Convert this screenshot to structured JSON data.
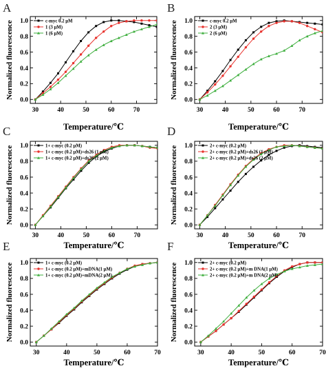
{
  "chart_data": [
    {
      "panel": "A",
      "type": "line",
      "xlabel": "Temperature/℃",
      "ylabel": "Normalized fluorescence",
      "xlim": [
        28,
        78
      ],
      "ylim": [
        -0.05,
        1.05
      ],
      "xticks": [
        30,
        40,
        50,
        60,
        70
      ],
      "yticks": [
        0.0,
        0.2,
        0.4,
        0.6,
        0.8,
        1.0
      ],
      "xtick_labels": [
        "30",
        "40",
        "50",
        "60",
        "70"
      ],
      "ytick_labels": [
        "0.0",
        "0.2",
        "0.4",
        "0.6",
        "0.8",
        "1.0"
      ],
      "legend_position": "top-left",
      "series": [
        {
          "name": "c-myc 0.2 μM",
          "color": "#000000",
          "x": [
            30,
            33,
            36,
            39,
            42,
            45,
            48,
            51,
            54,
            57,
            60,
            63,
            66,
            69,
            72,
            75,
            78
          ],
          "y": [
            0.0,
            0.1,
            0.21,
            0.33,
            0.47,
            0.61,
            0.74,
            0.85,
            0.93,
            0.98,
            1.0,
            1.0,
            0.99,
            0.98,
            0.96,
            0.94,
            0.92
          ]
        },
        {
          "name": "1 (3 μM)",
          "color": "#e8322d",
          "x": [
            30,
            33,
            36,
            39,
            42,
            45,
            48,
            51,
            54,
            57,
            60,
            63,
            66,
            69,
            72,
            75,
            78
          ],
          "y": [
            0.0,
            0.08,
            0.16,
            0.25,
            0.35,
            0.46,
            0.57,
            0.68,
            0.78,
            0.86,
            0.93,
            0.97,
            0.99,
            1.0,
            1.0,
            1.0,
            1.0
          ]
        },
        {
          "name": "1 (6 μM)",
          "color": "#3cae3c",
          "x": [
            30,
            33,
            36,
            39,
            42,
            45,
            48,
            51,
            54,
            57,
            60,
            63,
            66,
            69,
            72,
            75,
            78
          ],
          "y": [
            0.0,
            0.06,
            0.13,
            0.21,
            0.3,
            0.39,
            0.48,
            0.56,
            0.63,
            0.69,
            0.74,
            0.78,
            0.82,
            0.86,
            0.89,
            0.92,
            0.95
          ]
        }
      ]
    },
    {
      "panel": "B",
      "type": "line",
      "xlabel": "Temperature/℃",
      "ylabel": "Normalized fluorescence",
      "xlim": [
        28,
        78
      ],
      "ylim": [
        -0.05,
        1.05
      ],
      "xticks": [
        30,
        40,
        50,
        60,
        70
      ],
      "yticks": [
        0.0,
        0.2,
        0.4,
        0.6,
        0.8,
        1.0
      ],
      "xtick_labels": [
        "30",
        "40",
        "50",
        "60",
        "70"
      ],
      "ytick_labels": [
        "0.0",
        "0.2",
        "0.4",
        "0.6",
        "0.8",
        "1.0"
      ],
      "legend_position": "top-left",
      "series": [
        {
          "name": "c-myc 0.2 μM",
          "color": "#000000",
          "x": [
            30,
            33,
            36,
            39,
            42,
            45,
            48,
            51,
            54,
            57,
            60,
            63,
            66,
            69,
            72,
            75,
            78
          ],
          "y": [
            0.0,
            0.11,
            0.23,
            0.36,
            0.5,
            0.63,
            0.75,
            0.85,
            0.92,
            0.97,
            0.99,
            1.0,
            0.99,
            0.98,
            0.97,
            0.96,
            0.95
          ]
        },
        {
          "name": "2 (3 μM)",
          "color": "#e8322d",
          "x": [
            30,
            33,
            36,
            39,
            42,
            45,
            48,
            51,
            54,
            57,
            60,
            63,
            66,
            69,
            72,
            75,
            78
          ],
          "y": [
            0.0,
            0.09,
            0.19,
            0.3,
            0.42,
            0.54,
            0.66,
            0.77,
            0.86,
            0.93,
            0.97,
            0.99,
            0.99,
            0.97,
            0.93,
            0.89,
            0.85
          ]
        },
        {
          "name": "2 (6 μM)",
          "color": "#3cae3c",
          "x": [
            30,
            33,
            36,
            39,
            42,
            45,
            48,
            51,
            54,
            57,
            60,
            63,
            66,
            69,
            72,
            75,
            78
          ],
          "y": [
            0.0,
            0.05,
            0.11,
            0.17,
            0.24,
            0.31,
            0.38,
            0.45,
            0.51,
            0.55,
            0.58,
            0.62,
            0.68,
            0.75,
            0.8,
            0.84,
            0.87
          ]
        }
      ]
    },
    {
      "panel": "C",
      "type": "line",
      "xlabel": "Temperature/℃",
      "ylabel": "Normalized fluorescence",
      "xlim": [
        28,
        78
      ],
      "ylim": [
        -0.05,
        1.05
      ],
      "xticks": [
        30,
        40,
        50,
        60,
        70
      ],
      "yticks": [
        0.0,
        0.2,
        0.4,
        0.6,
        0.8,
        1.0
      ],
      "xtick_labels": [
        "30",
        "40",
        "50",
        "60",
        "70"
      ],
      "ytick_labels": [
        "0.0",
        "0.2",
        "0.4",
        "0.6",
        "0.8",
        "1.0"
      ],
      "legend_position": "top-left",
      "series": [
        {
          "name": "1+ c-myc (0.2 μM)",
          "color": "#000000",
          "x": [
            30,
            33,
            36,
            39,
            42,
            45,
            48,
            51,
            54,
            57,
            60,
            63,
            66,
            69,
            72,
            75,
            78
          ],
          "y": [
            0.0,
            0.11,
            0.22,
            0.34,
            0.46,
            0.57,
            0.68,
            0.78,
            0.86,
            0.92,
            0.96,
            0.99,
            1.0,
            1.0,
            0.99,
            0.98,
            0.97
          ]
        },
        {
          "name": "1+ c-myc (0.2 μM)+ds26 (1 μM)",
          "color": "#e8322d",
          "x": [
            30,
            33,
            36,
            39,
            42,
            45,
            48,
            51,
            54,
            57,
            60,
            63,
            66,
            69,
            72,
            75,
            78
          ],
          "y": [
            0.0,
            0.12,
            0.24,
            0.36,
            0.48,
            0.6,
            0.71,
            0.81,
            0.88,
            0.94,
            0.98,
            1.0,
            1.0,
            1.0,
            0.99,
            0.97,
            0.96
          ]
        },
        {
          "name": "1+ c-myc (0.2 μM)+ds26 (2 μM)",
          "color": "#3cae3c",
          "x": [
            30,
            33,
            36,
            39,
            42,
            45,
            48,
            51,
            54,
            57,
            60,
            63,
            66,
            69,
            72,
            75,
            78
          ],
          "y": [
            0.0,
            0.11,
            0.23,
            0.35,
            0.47,
            0.59,
            0.7,
            0.8,
            0.87,
            0.93,
            0.97,
            0.99,
            1.0,
            1.0,
            0.99,
            0.98,
            0.97
          ]
        }
      ]
    },
    {
      "panel": "D",
      "type": "line",
      "xlabel": "Temperature/℃",
      "ylabel": "Normalized fluorescence",
      "xlim": [
        28,
        78
      ],
      "ylim": [
        -0.05,
        1.05
      ],
      "xticks": [
        30,
        40,
        50,
        60,
        70
      ],
      "yticks": [
        0.0,
        0.2,
        0.4,
        0.6,
        0.8,
        1.0
      ],
      "xtick_labels": [
        "30",
        "40",
        "50",
        "60",
        "70"
      ],
      "ytick_labels": [
        "0.0",
        "0.2",
        "0.4",
        "0.6",
        "0.8",
        "1.0"
      ],
      "legend_position": "top-left",
      "series": [
        {
          "name": "2+ c-myc (0.2 μM)",
          "color": "#000000",
          "x": [
            30,
            33,
            36,
            39,
            42,
            45,
            48,
            51,
            54,
            57,
            60,
            63,
            66,
            69,
            72,
            75,
            78
          ],
          "y": [
            0.0,
            0.1,
            0.21,
            0.32,
            0.43,
            0.54,
            0.64,
            0.73,
            0.81,
            0.88,
            0.93,
            0.97,
            0.99,
            1.0,
            0.99,
            0.98,
            0.97
          ]
        },
        {
          "name": "2+ c-myc (0.2 μM)+ds26 (1 μM)",
          "color": "#e8322d",
          "x": [
            30,
            33,
            36,
            39,
            42,
            45,
            48,
            51,
            54,
            57,
            60,
            63,
            66,
            69,
            72,
            75,
            78
          ],
          "y": [
            0.0,
            0.12,
            0.25,
            0.38,
            0.51,
            0.63,
            0.74,
            0.83,
            0.9,
            0.95,
            0.98,
            1.0,
            1.0,
            0.99,
            0.98,
            0.97,
            0.96
          ]
        },
        {
          "name": "2+ c-myc (0.2 μM)+ds26 (2 μM)",
          "color": "#3cae3c",
          "x": [
            30,
            33,
            36,
            39,
            42,
            45,
            48,
            51,
            54,
            57,
            60,
            63,
            66,
            69,
            72,
            75,
            78
          ],
          "y": [
            0.0,
            0.12,
            0.24,
            0.37,
            0.5,
            0.62,
            0.73,
            0.82,
            0.89,
            0.94,
            0.98,
            0.99,
            1.0,
            0.99,
            0.98,
            0.97,
            0.96
          ]
        }
      ]
    },
    {
      "panel": "E",
      "type": "line",
      "xlabel": "Temperature/℃",
      "ylabel": "Normalized fluorescence",
      "xlim": [
        28,
        70
      ],
      "ylim": [
        -0.05,
        1.05
      ],
      "xticks": [
        30,
        40,
        50,
        60,
        70
      ],
      "yticks": [
        0.0,
        0.2,
        0.4,
        0.6,
        0.8,
        1.0
      ],
      "xtick_labels": [
        "30",
        "40",
        "50",
        "60",
        "70"
      ],
      "ytick_labels": [
        "0.0",
        "0.2",
        "0.4",
        "0.6",
        "0.8",
        "1.0"
      ],
      "legend_position": "top-left",
      "series": [
        {
          "name": "1+ c-myc (0.2 μM)",
          "color": "#000000",
          "x": [
            30,
            32.5,
            35,
            37.5,
            40,
            42.5,
            45,
            47.5,
            50,
            52.5,
            55,
            57.5,
            60,
            62.5,
            65,
            67.5,
            70
          ],
          "y": [
            0.0,
            0.08,
            0.16,
            0.24,
            0.33,
            0.41,
            0.5,
            0.58,
            0.66,
            0.73,
            0.8,
            0.86,
            0.91,
            0.95,
            0.98,
            0.99,
            1.0
          ]
        },
        {
          "name": "1+ c-myc (0.2 μM)+mDNA(1 μM)",
          "color": "#e8322d",
          "x": [
            30,
            32.5,
            35,
            37.5,
            40,
            42.5,
            45,
            47.5,
            50,
            52.5,
            55,
            57.5,
            60,
            62.5,
            65,
            67.5,
            70
          ],
          "y": [
            0.0,
            0.08,
            0.16,
            0.25,
            0.34,
            0.42,
            0.51,
            0.59,
            0.67,
            0.74,
            0.81,
            0.87,
            0.92,
            0.96,
            0.98,
            0.99,
            1.0
          ]
        },
        {
          "name": "1+ c-myc (0.2 μM)+mDNA(2 μM)",
          "color": "#3cae3c",
          "x": [
            30,
            32.5,
            35,
            37.5,
            40,
            42.5,
            45,
            47.5,
            50,
            52.5,
            55,
            57.5,
            60,
            62.5,
            65,
            67.5,
            70
          ],
          "y": [
            0.0,
            0.08,
            0.17,
            0.26,
            0.35,
            0.43,
            0.52,
            0.6,
            0.68,
            0.75,
            0.82,
            0.87,
            0.92,
            0.95,
            0.97,
            0.99,
            1.0
          ]
        }
      ]
    },
    {
      "panel": "F",
      "type": "line",
      "xlabel": "Temperature/℃",
      "ylabel": "Normalized fluorescence",
      "xlim": [
        28,
        70
      ],
      "ylim": [
        -0.05,
        1.05
      ],
      "xticks": [
        30,
        40,
        50,
        60,
        70
      ],
      "yticks": [
        0.0,
        0.2,
        0.4,
        0.6,
        0.8,
        1.0
      ],
      "xtick_labels": [
        "30",
        "40",
        "50",
        "60",
        "70"
      ],
      "ytick_labels": [
        "0.0",
        "0.2",
        "0.4",
        "0.6",
        "0.8",
        "1.0"
      ],
      "legend_position": "top-left",
      "series": [
        {
          "name": "2+ c-myc (0.2 μM)",
          "color": "#000000",
          "x": [
            30,
            32.5,
            35,
            37.5,
            40,
            42.5,
            45,
            47.5,
            50,
            52.5,
            55,
            57.5,
            60,
            62.5,
            65,
            67.5,
            70
          ],
          "y": [
            0.0,
            0.07,
            0.14,
            0.22,
            0.3,
            0.38,
            0.47,
            0.56,
            0.65,
            0.74,
            0.82,
            0.89,
            0.94,
            0.98,
            1.0,
            1.0,
            1.0
          ]
        },
        {
          "name": "2+ c-myc (0.2 μM)+m DNA(1 μM)",
          "color": "#e8322d",
          "x": [
            30,
            32.5,
            35,
            37.5,
            40,
            42.5,
            45,
            47.5,
            50,
            52.5,
            55,
            57.5,
            60,
            62.5,
            65,
            67.5,
            70
          ],
          "y": [
            0.0,
            0.07,
            0.14,
            0.22,
            0.3,
            0.39,
            0.48,
            0.57,
            0.66,
            0.75,
            0.83,
            0.9,
            0.95,
            0.98,
            1.0,
            1.0,
            1.0
          ]
        },
        {
          "name": "2+ c-myc (0.2 μM)+m DNA(2 μM)",
          "color": "#3cae3c",
          "x": [
            30,
            32.5,
            35,
            37.5,
            40,
            42.5,
            45,
            47.5,
            50,
            52.5,
            55,
            57.5,
            60,
            62.5,
            65,
            67.5,
            70
          ],
          "y": [
            0.0,
            0.08,
            0.17,
            0.26,
            0.36,
            0.46,
            0.56,
            0.65,
            0.73,
            0.8,
            0.85,
            0.89,
            0.92,
            0.94,
            0.96,
            0.97,
            0.98
          ]
        }
      ]
    }
  ]
}
